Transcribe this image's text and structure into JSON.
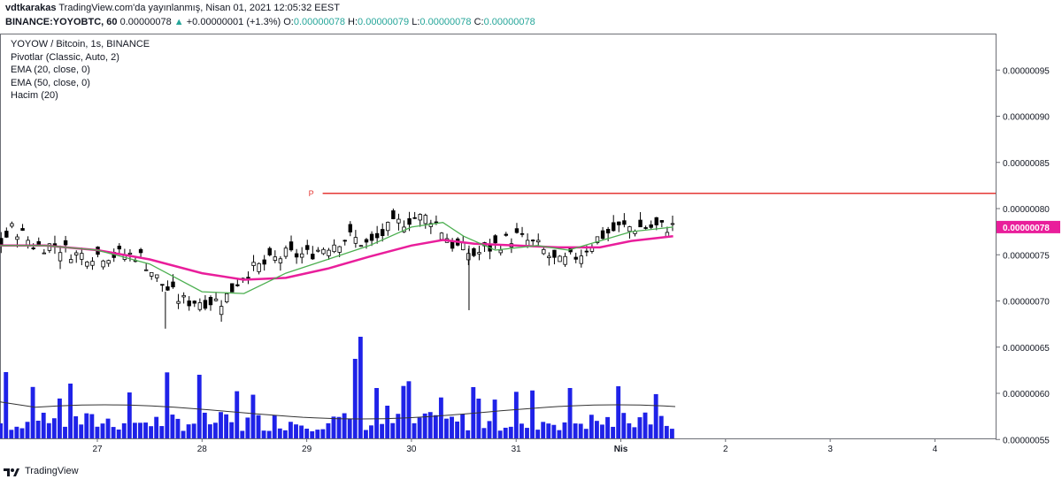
{
  "header": {
    "author": "vdtkarakas",
    "published_text": "TradingView.com'da yayınlanmış, Nisan 01, 2021 12:05:32 EEST",
    "symbol_line": "BINANCE:YOYOBTC, 60",
    "last": "0.00000078",
    "change": "+0.00000001 (+1.3%)",
    "o_label": "O:",
    "o_value": "0.00000078",
    "h_label": "H:",
    "h_value": "0.00000079",
    "l_label": "L:",
    "l_value": "0.00000078",
    "c_label": "C:",
    "c_value": "0.00000078"
  },
  "legend": {
    "title": "YOYOW / Bitcoin, 1s, BINANCE",
    "lines": [
      "Pivotlar (Classic, Auto, 2)",
      "EMA (20, close, 0)",
      "EMA (50, close, 0)",
      "Hacim (20)"
    ]
  },
  "footer": {
    "brand": "TradingView"
  },
  "colors": {
    "up_candle": "#ffffff",
    "down_candle": "#000000",
    "ema20": "#4caf50",
    "ema50": "#e91e9b",
    "pivot": "#e53935",
    "volume": "#1f22e8",
    "volume_ma": "#333333",
    "price_tag": "#e91e9b"
  },
  "chart_data": {
    "type": "candlestick",
    "x_ticks": [
      "27",
      "28",
      "29",
      "30",
      "31",
      "Nis",
      "2",
      "3",
      "4"
    ],
    "y_ticks": [
      "0.00000095",
      "0.00000090",
      "0.00000085",
      "0.00000080",
      "0.00000075",
      "0.00000070",
      "0.00000065",
      "0.00000060",
      "0.00000055"
    ],
    "ylim": [
      5.45e-07,
      9.9e-07
    ],
    "last_price_label": "0.00000078",
    "pivot": {
      "label": "P",
      "value": 8.165e-07,
      "start_day": 29.0,
      "end_day": 4.5
    },
    "ohlc_anchors": [
      {
        "d": 26.0,
        "c": 75
      },
      {
        "d": 26.2,
        "c": 78
      },
      {
        "d": 26.4,
        "c": 76
      },
      {
        "d": 26.6,
        "c": 76
      },
      {
        "d": 26.8,
        "c": 75
      },
      {
        "d": 27.0,
        "c": 75
      },
      {
        "d": 27.2,
        "c": 75
      },
      {
        "d": 27.4,
        "c": 75
      },
      {
        "d": 27.6,
        "c": 72
      },
      {
        "d": 27.8,
        "c": 70
      },
      {
        "d": 28.0,
        "c": 70
      },
      {
        "d": 28.2,
        "c": 70
      },
      {
        "d": 28.4,
        "c": 73
      },
      {
        "d": 28.6,
        "c": 74
      },
      {
        "d": 28.8,
        "c": 75
      },
      {
        "d": 29.0,
        "c": 75
      },
      {
        "d": 29.2,
        "c": 76
      },
      {
        "d": 29.4,
        "c": 77
      },
      {
        "d": 29.6,
        "c": 76
      },
      {
        "d": 29.8,
        "c": 78
      },
      {
        "d": 30.0,
        "c": 79
      },
      {
        "d": 30.2,
        "c": 79
      },
      {
        "d": 30.4,
        "c": 76
      },
      {
        "d": 30.6,
        "c": 75
      },
      {
        "d": 30.8,
        "c": 76
      },
      {
        "d": 31.0,
        "c": 77
      },
      {
        "d": 31.2,
        "c": 76
      },
      {
        "d": 31.4,
        "c": 74
      },
      {
        "d": 31.6,
        "c": 75
      },
      {
        "d": 31.8,
        "c": 77
      },
      {
        "d": 32.0,
        "c": 78
      },
      {
        "d": 32.2,
        "c": 78
      },
      {
        "d": 32.4,
        "c": 78
      },
      {
        "d": 32.5,
        "c": 78
      }
    ],
    "ema20_values": [
      {
        "d": 26.0,
        "v": 76
      },
      {
        "d": 26.5,
        "v": 76
      },
      {
        "d": 27.0,
        "v": 75.5
      },
      {
        "d": 27.5,
        "v": 74
      },
      {
        "d": 28.0,
        "v": 71
      },
      {
        "d": 28.4,
        "v": 70.8
      },
      {
        "d": 28.8,
        "v": 73
      },
      {
        "d": 29.2,
        "v": 74.5
      },
      {
        "d": 29.6,
        "v": 76
      },
      {
        "d": 30.0,
        "v": 78
      },
      {
        "d": 30.3,
        "v": 78.5
      },
      {
        "d": 30.5,
        "v": 77
      },
      {
        "d": 30.8,
        "v": 75.5
      },
      {
        "d": 31.2,
        "v": 76
      },
      {
        "d": 31.5,
        "v": 75.5
      },
      {
        "d": 31.8,
        "v": 76.5
      },
      {
        "d": 32.1,
        "v": 77.5
      },
      {
        "d": 32.5,
        "v": 78
      }
    ],
    "ema50_values": [
      {
        "d": 26.0,
        "v": 76
      },
      {
        "d": 26.5,
        "v": 76
      },
      {
        "d": 27.0,
        "v": 75.5
      },
      {
        "d": 27.5,
        "v": 74.5
      },
      {
        "d": 28.0,
        "v": 73
      },
      {
        "d": 28.4,
        "v": 72.3
      },
      {
        "d": 28.8,
        "v": 72.5
      },
      {
        "d": 29.2,
        "v": 73.5
      },
      {
        "d": 29.6,
        "v": 74.8
      },
      {
        "d": 30.0,
        "v": 76
      },
      {
        "d": 30.3,
        "v": 76.6
      },
      {
        "d": 30.6,
        "v": 76.2
      },
      {
        "d": 31.0,
        "v": 76
      },
      {
        "d": 31.4,
        "v": 75.8
      },
      {
        "d": 31.8,
        "v": 75.8
      },
      {
        "d": 32.1,
        "v": 76.5
      },
      {
        "d": 32.5,
        "v": 77
      }
    ],
    "volume_ma_level": 0.35
  }
}
